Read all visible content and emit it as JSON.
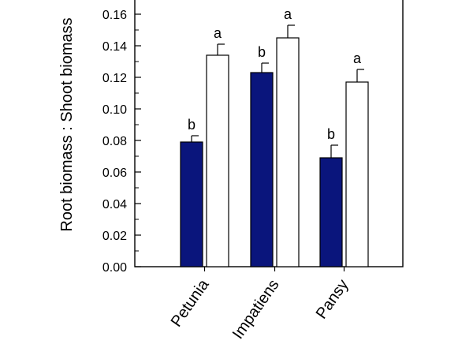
{
  "chart_data": {
    "type": "bar",
    "ylabel": "Root biomass : Shoot biomass",
    "ylim": [
      0,
      0.17
    ],
    "yticks": [
      "0.00",
      "0.02",
      "0.04",
      "0.06",
      "0.08",
      "0.10",
      "0.12",
      "0.14",
      "0.16"
    ],
    "categories": [
      "Petunia",
      "Impatiens",
      "Pansy"
    ],
    "series": [
      {
        "color": "#0a157c",
        "values": [
          0.079,
          0.123,
          0.069
        ],
        "errors": [
          0.004,
          0.006,
          0.008
        ],
        "letters": [
          "b",
          "b",
          "b"
        ]
      },
      {
        "color": "#ffffff",
        "values": [
          0.134,
          0.145,
          0.117
        ],
        "errors": [
          0.007,
          0.008,
          0.008
        ],
        "letters": [
          "a",
          "a",
          "a"
        ]
      }
    ]
  }
}
